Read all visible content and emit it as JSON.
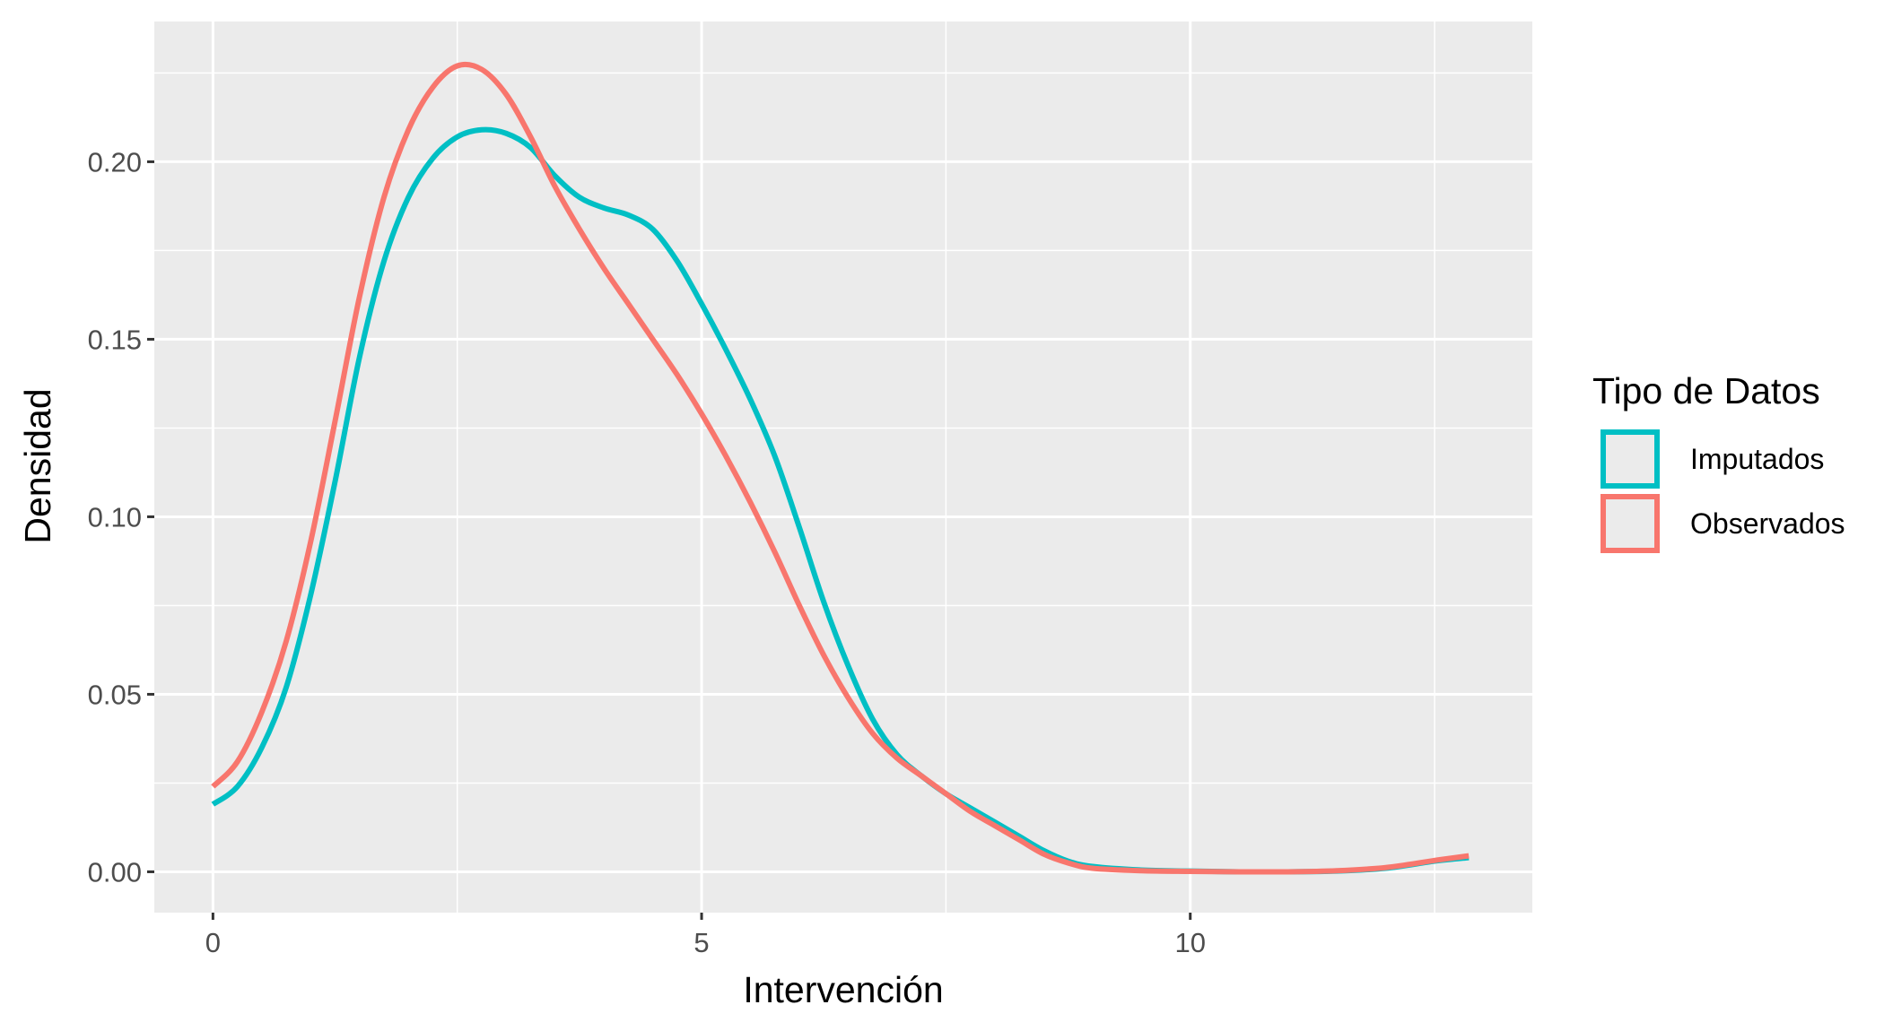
{
  "chart_data": {
    "type": "line",
    "title": "",
    "xlabel": "Intervención",
    "ylabel": "Densidad",
    "xlim": [
      -0.6,
      13.5
    ],
    "ylim": [
      -0.0115,
      0.2395
    ],
    "x_ticks": [
      0,
      5,
      10
    ],
    "x_tick_labels": [
      "0",
      "5",
      "10"
    ],
    "y_ticks": [
      0.0,
      0.05,
      0.1,
      0.15,
      0.2
    ],
    "y_tick_labels": [
      "0.00",
      "0.05",
      "0.10",
      "0.15",
      "0.20"
    ],
    "grid": true,
    "legend": {
      "title": "Tipo de Datos",
      "position": "right"
    },
    "series": [
      {
        "name": "Imputados",
        "color": "#00BFC4",
        "points": [
          [
            0,
            0.019
          ],
          [
            0.25,
            0.024
          ],
          [
            0.5,
            0.035
          ],
          [
            0.75,
            0.052
          ],
          [
            1.0,
            0.078
          ],
          [
            1.25,
            0.11
          ],
          [
            1.5,
            0.145
          ],
          [
            1.75,
            0.172
          ],
          [
            2.0,
            0.19
          ],
          [
            2.25,
            0.201
          ],
          [
            2.5,
            0.207
          ],
          [
            2.75,
            0.209
          ],
          [
            3.0,
            0.208
          ],
          [
            3.25,
            0.204
          ],
          [
            3.5,
            0.196
          ],
          [
            3.75,
            0.19
          ],
          [
            4.0,
            0.187
          ],
          [
            4.25,
            0.185
          ],
          [
            4.5,
            0.181
          ],
          [
            4.75,
            0.172
          ],
          [
            5.0,
            0.16
          ],
          [
            5.25,
            0.147
          ],
          [
            5.5,
            0.133
          ],
          [
            5.75,
            0.117
          ],
          [
            6.0,
            0.097
          ],
          [
            6.25,
            0.076
          ],
          [
            6.5,
            0.058
          ],
          [
            6.75,
            0.043
          ],
          [
            7.0,
            0.033
          ],
          [
            7.25,
            0.027
          ],
          [
            7.5,
            0.022
          ],
          [
            7.75,
            0.018
          ],
          [
            8.0,
            0.014
          ],
          [
            8.25,
            0.01
          ],
          [
            8.5,
            0.006
          ],
          [
            8.75,
            0.003
          ],
          [
            9.0,
            0.0015
          ],
          [
            9.5,
            0.0005
          ],
          [
            10.0,
            0.0002
          ],
          [
            10.5,
            0.0
          ],
          [
            11.0,
            0.0
          ],
          [
            11.5,
            0.0002
          ],
          [
            12.0,
            0.001
          ],
          [
            12.5,
            0.003
          ],
          [
            12.85,
            0.004
          ]
        ]
      },
      {
        "name": "Observados",
        "color": "#F8766D",
        "points": [
          [
            0,
            0.024
          ],
          [
            0.25,
            0.031
          ],
          [
            0.5,
            0.045
          ],
          [
            0.75,
            0.065
          ],
          [
            1.0,
            0.093
          ],
          [
            1.25,
            0.127
          ],
          [
            1.5,
            0.162
          ],
          [
            1.75,
            0.19
          ],
          [
            2.0,
            0.209
          ],
          [
            2.25,
            0.221
          ],
          [
            2.5,
            0.227
          ],
          [
            2.75,
            0.226
          ],
          [
            3.0,
            0.219
          ],
          [
            3.25,
            0.207
          ],
          [
            3.5,
            0.193
          ],
          [
            3.75,
            0.181
          ],
          [
            4.0,
            0.17
          ],
          [
            4.25,
            0.16
          ],
          [
            4.5,
            0.15
          ],
          [
            4.75,
            0.14
          ],
          [
            5.0,
            0.129
          ],
          [
            5.25,
            0.117
          ],
          [
            5.5,
            0.104
          ],
          [
            5.75,
            0.09
          ],
          [
            6.0,
            0.075
          ],
          [
            6.25,
            0.061
          ],
          [
            6.5,
            0.049
          ],
          [
            6.75,
            0.039
          ],
          [
            7.0,
            0.032
          ],
          [
            7.25,
            0.027
          ],
          [
            7.5,
            0.022
          ],
          [
            7.75,
            0.017
          ],
          [
            8.0,
            0.013
          ],
          [
            8.25,
            0.009
          ],
          [
            8.5,
            0.005
          ],
          [
            8.75,
            0.0025
          ],
          [
            9.0,
            0.001
          ],
          [
            9.5,
            0.0003
          ],
          [
            10.0,
            0.0001
          ],
          [
            10.5,
            0.0
          ],
          [
            11.0,
            0.0
          ],
          [
            11.5,
            0.0003
          ],
          [
            12.0,
            0.0012
          ],
          [
            12.5,
            0.0032
          ],
          [
            12.85,
            0.0045
          ]
        ]
      }
    ]
  }
}
